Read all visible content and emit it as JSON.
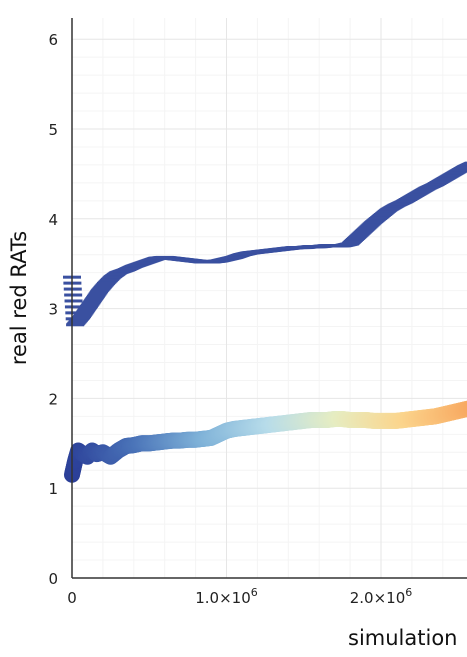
{
  "chart_data": {
    "type": "scatter",
    "title": "",
    "xlabel": "simulation",
    "ylabel": "real red RATs",
    "xlim": [
      0,
      2600000
    ],
    "ylim": [
      0,
      6.2
    ],
    "grid": true,
    "x_ticks": [
      {
        "value": 0,
        "label": "0"
      },
      {
        "value": 1000000,
        "label": "1.0×10",
        "exp": "6"
      },
      {
        "value": 2000000,
        "label": "2.0×10",
        "exp": "6"
      }
    ],
    "y_ticks": [
      {
        "value": 0,
        "label": "0"
      },
      {
        "value": 1,
        "label": "1"
      },
      {
        "value": 2,
        "label": "2"
      },
      {
        "value": 3,
        "label": "3"
      },
      {
        "value": 4,
        "label": "4"
      },
      {
        "value": 5,
        "label": "5"
      },
      {
        "value": 6,
        "label": "6"
      }
    ],
    "series": [
      {
        "marker": "dash",
        "color": "#3a50a0",
        "x": [
          0,
          20000,
          60000,
          100000,
          140000,
          180000,
          220000,
          260000,
          300000,
          350000,
          400000,
          450000,
          500000,
          550000,
          600000,
          650000,
          700000,
          750000,
          800000,
          850000,
          900000,
          950000,
          1000000,
          1050000,
          1100000,
          1150000,
          1200000,
          1250000,
          1300000,
          1350000,
          1400000,
          1450000,
          1500000,
          1550000,
          1600000,
          1650000,
          1700000,
          1750000,
          1800000,
          1850000,
          1900000,
          1950000,
          2000000,
          2050000,
          2100000,
          2150000,
          2200000,
          2250000,
          2300000,
          2350000,
          2400000,
          2450000,
          2500000,
          2550000,
          2600000
        ],
        "y": [
          3.35,
          2.82,
          2.9,
          3.0,
          3.1,
          3.2,
          3.28,
          3.35,
          3.4,
          3.43,
          3.47,
          3.5,
          3.53,
          3.56,
          3.57,
          3.56,
          3.55,
          3.54,
          3.53,
          3.52,
          3.52,
          3.53,
          3.55,
          3.57,
          3.6,
          3.62,
          3.63,
          3.64,
          3.65,
          3.66,
          3.67,
          3.68,
          3.68,
          3.69,
          3.69,
          3.7,
          3.7,
          3.7,
          3.72,
          3.8,
          3.88,
          3.96,
          4.03,
          4.1,
          4.15,
          4.19,
          4.24,
          4.29,
          4.34,
          4.38,
          4.43,
          4.48,
          4.53,
          4.58,
          4.62
        ]
      },
      {
        "marker": "circle",
        "colormap": [
          "#2b3f98",
          "#4a73b8",
          "#7fb2d8",
          "#b7dcea",
          "#e6edc2",
          "#fbd58d",
          "#f8a961"
        ],
        "x": [
          0,
          20000,
          40000,
          70000,
          100000,
          130000,
          160000,
          200000,
          250000,
          300000,
          350000,
          400000,
          450000,
          500000,
          550000,
          600000,
          650000,
          700000,
          750000,
          800000,
          850000,
          900000,
          950000,
          1000000,
          1050000,
          1100000,
          1150000,
          1200000,
          1250000,
          1300000,
          1350000,
          1400000,
          1450000,
          1500000,
          1550000,
          1600000,
          1650000,
          1700000,
          1750000,
          1800000,
          1850000,
          1900000,
          1950000,
          2000000,
          2050000,
          2100000,
          2150000,
          2200000,
          2250000,
          2300000,
          2350000,
          2400000,
          2450000,
          2500000,
          2550000,
          2600000
        ],
        "y": [
          1.15,
          1.3,
          1.42,
          1.38,
          1.35,
          1.42,
          1.38,
          1.4,
          1.35,
          1.42,
          1.47,
          1.48,
          1.5,
          1.5,
          1.51,
          1.52,
          1.53,
          1.53,
          1.54,
          1.54,
          1.55,
          1.56,
          1.6,
          1.64,
          1.66,
          1.67,
          1.68,
          1.69,
          1.7,
          1.71,
          1.72,
          1.73,
          1.74,
          1.75,
          1.76,
          1.76,
          1.76,
          1.77,
          1.77,
          1.76,
          1.76,
          1.76,
          1.75,
          1.75,
          1.75,
          1.75,
          1.76,
          1.77,
          1.78,
          1.79,
          1.8,
          1.82,
          1.84,
          1.86,
          1.88,
          1.9
        ]
      }
    ]
  }
}
